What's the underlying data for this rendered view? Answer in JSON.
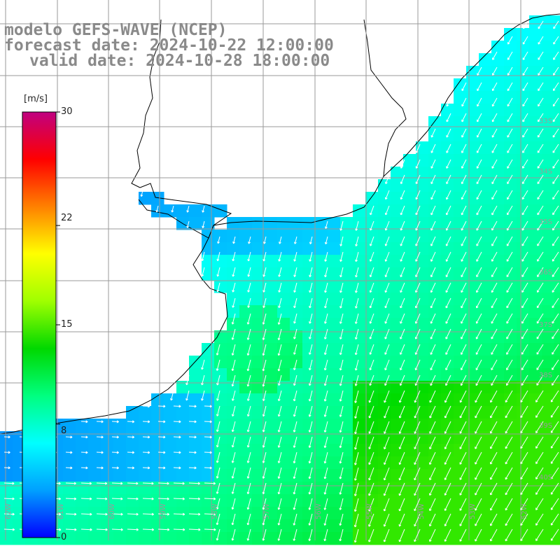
{
  "title": {
    "line1": "modelo GEFS-WAVE (NCEP)",
    "line2": "forecast date: 2024-10-22 12:00:00",
    "line3": "valid date: 2024-10-28 18:00:00"
  },
  "colorbar": {
    "unit": "[m/s]",
    "ticks": [
      {
        "value": 30,
        "label": "30"
      },
      {
        "value": 22,
        "label": "22"
      },
      {
        "value": 15,
        "label": "15"
      },
      {
        "value": 8,
        "label": "8"
      },
      {
        "value": 0,
        "label": "0"
      }
    ],
    "colors": [
      "#0000ff",
      "#00a0ff",
      "#00ffff",
      "#00ff80",
      "#00d800",
      "#a0ff00",
      "#ffff00",
      "#ff8000",
      "#ff0000",
      "#c00080"
    ]
  },
  "grid": {
    "lat_labels": [
      "33S",
      "34S",
      "35S",
      "36S",
      "37S",
      "38S",
      "39S",
      "40S"
    ],
    "lon_labels": [
      "62W",
      "61W",
      "60W",
      "59W",
      "58W",
      "57W",
      "56W",
      "55W",
      "54W",
      "53W",
      "52W"
    ]
  },
  "colors": {
    "land": "#ffffff",
    "coast": "#000000",
    "gridline": "#9a9a9a",
    "arrow": "#ffffff",
    "title": "#8a8a8a"
  },
  "field": {
    "variable": "wind speed",
    "units": "m/s",
    "range": [
      0,
      30
    ],
    "region_summary": [
      {
        "area": "river estuary",
        "speed_ms": 3
      },
      {
        "area": "northern shelf",
        "speed_ms": 5
      },
      {
        "area": "central shelf",
        "speed_ms": 9
      },
      {
        "area": "southeast open ocean",
        "speed_ms": 12
      }
    ]
  }
}
